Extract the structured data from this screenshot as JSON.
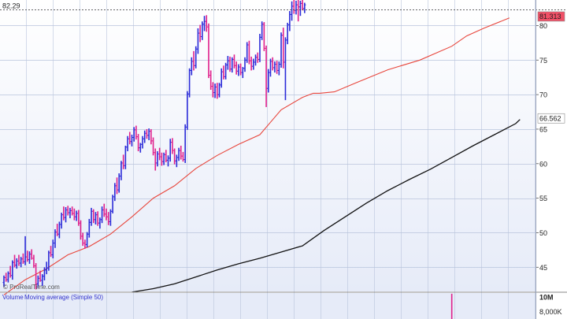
{
  "chart_data": [
    {
      "type": "ohlc",
      "watermark": "© ProRealTime.com",
      "colors": {
        "up": "#2b2bd8",
        "down": "#e0208c",
        "ma_short": "#e8463c",
        "ma_long": "#111111",
        "grid": "#b9c4dc",
        "background_top": "#ffffff",
        "background_bottom": "#e6ebf8",
        "price_box": "#f05066",
        "reference_line": "#333333"
      },
      "yaxis": {
        "ticks": [
          45,
          50,
          55,
          60,
          65,
          70,
          75,
          80
        ],
        "ylim": [
          41.5,
          83.7
        ],
        "grid": true
      },
      "reference_line": {
        "value": 82.29,
        "label": "82.29"
      },
      "price_labels": [
        {
          "label": "81.313",
          "value": 81.313,
          "color": "#f05066",
          "text_color": "#ffffff"
        },
        {
          "label": "66.562",
          "value": 66.562,
          "color": "#ffffff",
          "text_color": "#222222"
        }
      ],
      "bars": [
        [
          42.8,
          43.8,
          42.2,
          43.5
        ],
        [
          43.5,
          44.2,
          42.9,
          43.2
        ],
        [
          43.2,
          44.4,
          42.8,
          44.1
        ],
        [
          44.1,
          45.2,
          43.5,
          43.8
        ],
        [
          43.8,
          46.0,
          43.2,
          45.7
        ],
        [
          45.7,
          46.8,
          45.0,
          45.3
        ],
        [
          45.3,
          46.3,
          44.8,
          45.9
        ],
        [
          45.9,
          46.8,
          45.2,
          45.6
        ],
        [
          45.6,
          46.5,
          45.0,
          46.2
        ],
        [
          46.2,
          47.0,
          45.5,
          45.8
        ],
        [
          45.8,
          49.5,
          45.3,
          46.5
        ],
        [
          46.5,
          47.4,
          45.8,
          46.1
        ],
        [
          46.1,
          47.3,
          45.5,
          46.9
        ],
        [
          46.9,
          47.6,
          46.1,
          46.3
        ],
        [
          46.3,
          46.8,
          44.9,
          45.2
        ],
        [
          45.2,
          45.6,
          41.8,
          42.6
        ],
        [
          42.6,
          43.8,
          42.0,
          43.4
        ],
        [
          43.4,
          44.5,
          42.9,
          43.1
        ],
        [
          43.1,
          44.0,
          42.3,
          43.7
        ],
        [
          43.7,
          45.0,
          43.1,
          44.6
        ],
        [
          44.6,
          45.8,
          44.0,
          44.9
        ],
        [
          44.9,
          47.4,
          44.5,
          47.1
        ],
        [
          47.1,
          48.1,
          46.5,
          46.8
        ],
        [
          46.8,
          49.0,
          46.3,
          48.5
        ],
        [
          48.5,
          50.5,
          47.8,
          50.1
        ],
        [
          50.1,
          51.3,
          49.5,
          49.8
        ],
        [
          49.8,
          51.6,
          49.2,
          51.2
        ],
        [
          51.2,
          52.9,
          50.6,
          52.6
        ],
        [
          52.6,
          53.8,
          51.8,
          52.2
        ],
        [
          52.2,
          53.7,
          51.5,
          53.3
        ],
        [
          53.3,
          53.9,
          52.5,
          52.9
        ],
        [
          52.9,
          53.6,
          52.1,
          53.2
        ],
        [
          53.2,
          53.8,
          52.5,
          52.8
        ],
        [
          52.8,
          53.5,
          51.8,
          52.3
        ],
        [
          52.3,
          53.2,
          51.7,
          52.8
        ],
        [
          52.8,
          53.3,
          51.0,
          51.4
        ],
        [
          51.4,
          51.8,
          49.0,
          49.5
        ],
        [
          49.5,
          50.0,
          48.1,
          48.5
        ],
        [
          48.5,
          49.0,
          47.7,
          48.3
        ],
        [
          48.3,
          50.1,
          47.9,
          49.8
        ],
        [
          49.8,
          52.0,
          49.3,
          51.5
        ],
        [
          51.5,
          53.6,
          51.0,
          53.1
        ],
        [
          53.1,
          53.4,
          51.4,
          51.9
        ],
        [
          51.9,
          53.0,
          51.2,
          52.6
        ],
        [
          52.6,
          53.1,
          51.0,
          51.4
        ],
        [
          51.4,
          52.2,
          50.6,
          51.9
        ],
        [
          51.9,
          53.8,
          51.4,
          53.3
        ],
        [
          53.3,
          54.2,
          52.3,
          52.7
        ],
        [
          52.7,
          53.5,
          51.8,
          52.3
        ],
        [
          52.3,
          53.0,
          51.1,
          51.6
        ],
        [
          51.6,
          53.4,
          51.0,
          53.1
        ],
        [
          53.1,
          55.5,
          52.8,
          55.2
        ],
        [
          55.2,
          57.2,
          54.6,
          56.8
        ],
        [
          56.8,
          58.0,
          55.6,
          56.2
        ],
        [
          56.2,
          58.6,
          55.8,
          58.2
        ],
        [
          58.2,
          60.4,
          57.6,
          60.1
        ],
        [
          60.1,
          61.3,
          59.2,
          59.7
        ],
        [
          59.7,
          62.6,
          59.2,
          62.4
        ],
        [
          62.4,
          64.0,
          61.8,
          63.6
        ],
        [
          63.6,
          64.6,
          62.8,
          63.2
        ],
        [
          63.2,
          64.2,
          62.5,
          63.8
        ],
        [
          63.8,
          65.3,
          63.2,
          64.9
        ],
        [
          64.9,
          65.5,
          63.5,
          63.9
        ],
        [
          63.9,
          64.3,
          61.8,
          62.3
        ],
        [
          62.3,
          63.0,
          61.6,
          62.8
        ],
        [
          62.8,
          64.0,
          62.2,
          63.6
        ],
        [
          63.6,
          64.8,
          63.0,
          64.4
        ],
        [
          64.4,
          65.0,
          63.6,
          64.1
        ],
        [
          64.1,
          65.1,
          63.4,
          64.7
        ],
        [
          64.7,
          65.0,
          62.8,
          63.3
        ],
        [
          63.3,
          63.8,
          61.2,
          61.6
        ],
        [
          61.6,
          62.2,
          59.0,
          60.1
        ],
        [
          60.1,
          61.8,
          59.6,
          61.4
        ],
        [
          61.4,
          62.3,
          60.5,
          61.0
        ],
        [
          61.0,
          61.6,
          59.7,
          60.3
        ],
        [
          60.3,
          61.6,
          59.8,
          61.3
        ],
        [
          61.3,
          62.0,
          60.2,
          60.5
        ],
        [
          60.5,
          61.2,
          59.6,
          60.8
        ],
        [
          60.8,
          63.6,
          60.3,
          63.1
        ],
        [
          63.1,
          63.7,
          61.4,
          61.9
        ],
        [
          61.9,
          62.2,
          59.9,
          60.4
        ],
        [
          60.4,
          61.3,
          59.5,
          60.9
        ],
        [
          60.9,
          62.3,
          60.4,
          61.9
        ],
        [
          61.9,
          62.6,
          60.6,
          61.1
        ],
        [
          61.1,
          61.7,
          60.3,
          60.6
        ],
        [
          60.6,
          65.7,
          60.1,
          65.3
        ],
        [
          65.3,
          70.5,
          64.9,
          70.1
        ],
        [
          70.1,
          73.8,
          69.6,
          73.5
        ],
        [
          73.5,
          75.4,
          72.8,
          74.8
        ],
        [
          74.8,
          76.3,
          73.5,
          74.2
        ],
        [
          74.2,
          77.0,
          73.8,
          76.6
        ],
        [
          76.6,
          79.6,
          75.9,
          78.9
        ],
        [
          78.9,
          80.1,
          77.6,
          78.4
        ],
        [
          78.4,
          80.6,
          77.9,
          80.2
        ],
        [
          80.2,
          81.4,
          79.2,
          80.6
        ],
        [
          80.6,
          81.5,
          79.1,
          79.8
        ],
        [
          79.8,
          80.3,
          72.4,
          72.8
        ],
        [
          72.8,
          73.5,
          70.7,
          71.2
        ],
        [
          71.2,
          71.8,
          69.6,
          70.3
        ],
        [
          70.3,
          71.6,
          69.5,
          71.1
        ],
        [
          71.1,
          71.7,
          69.4,
          70.0
        ],
        [
          70.0,
          71.7,
          69.6,
          71.4
        ],
        [
          71.4,
          73.8,
          71.0,
          73.3
        ],
        [
          73.3,
          74.2,
          72.2,
          72.6
        ],
        [
          72.6,
          74.6,
          72.2,
          74.3
        ],
        [
          74.3,
          75.6,
          73.6,
          74.9
        ],
        [
          74.9,
          75.5,
          73.3,
          73.7
        ],
        [
          73.7,
          75.4,
          73.2,
          75.1
        ],
        [
          75.1,
          75.8,
          73.8,
          74.2
        ],
        [
          74.2,
          74.8,
          72.9,
          73.4
        ],
        [
          73.4,
          74.4,
          72.7,
          74.0
        ],
        [
          74.0,
          74.5,
          72.8,
          73.2
        ],
        [
          73.2,
          74.0,
          72.4,
          73.8
        ],
        [
          73.8,
          75.4,
          73.3,
          75.0
        ],
        [
          75.0,
          77.6,
          74.6,
          77.2
        ],
        [
          77.2,
          77.8,
          74.4,
          74.9
        ],
        [
          74.9,
          75.5,
          73.5,
          74.1
        ],
        [
          74.1,
          75.2,
          73.6,
          74.7
        ],
        [
          74.7,
          75.8,
          74.2,
          75.4
        ],
        [
          75.4,
          76.1,
          74.6,
          75.1
        ],
        [
          75.1,
          78.8,
          74.7,
          78.3
        ],
        [
          78.3,
          80.6,
          77.9,
          80.2
        ],
        [
          80.2,
          80.5,
          76.3,
          76.7
        ],
        [
          76.7,
          77.1,
          68.2,
          70.9
        ],
        [
          70.9,
          73.7,
          70.3,
          73.2
        ],
        [
          73.2,
          75.2,
          72.6,
          74.8
        ],
        [
          74.8,
          75.4,
          73.5,
          73.9
        ],
        [
          73.9,
          74.8,
          73.2,
          74.4
        ],
        [
          74.4,
          74.9,
          73.0,
          73.5
        ],
        [
          73.5,
          74.8,
          72.8,
          74.4
        ],
        [
          74.4,
          79.0,
          73.9,
          78.6
        ],
        [
          78.6,
          79.7,
          73.8,
          74.7
        ],
        [
          74.7,
          78.3,
          69.2,
          77.9
        ],
        [
          77.9,
          80.4,
          77.3,
          80.1
        ],
        [
          80.1,
          82.1,
          79.2,
          81.6
        ],
        [
          81.6,
          83.5,
          80.7,
          82.8
        ],
        [
          82.8,
          84.0,
          81.7,
          82.2
        ],
        [
          82.2,
          83.6,
          81.6,
          83.0
        ],
        [
          83.0,
          84.0,
          80.6,
          82.7
        ],
        [
          82.7,
          83.6,
          81.4,
          83.2
        ],
        [
          83.2,
          83.8,
          82.2,
          82.5
        ],
        [
          82.5,
          83.3,
          81.8,
          83.0
        ]
      ],
      "ma_short": [
        [
          0,
          41.0
        ],
        [
          10,
          43.2
        ],
        [
          20,
          44.8
        ],
        [
          30,
          46.8
        ],
        [
          40,
          48.0
        ],
        [
          50,
          49.8
        ],
        [
          60,
          52.3
        ],
        [
          70,
          55.0
        ],
        [
          80,
          56.8
        ],
        [
          90,
          59.3
        ],
        [
          100,
          61.2
        ],
        [
          110,
          62.8
        ],
        [
          120,
          64.2
        ],
        [
          125,
          66.0
        ],
        [
          130,
          67.8
        ],
        [
          140,
          69.6
        ],
        [
          145,
          70.2
        ],
        [
          148,
          70.2
        ],
        [
          155,
          70.4
        ],
        [
          165,
          71.7
        ],
        [
          180,
          73.6
        ],
        [
          195,
          75.0
        ],
        [
          210,
          77.0
        ],
        [
          217,
          78.5
        ],
        [
          225,
          79.6
        ],
        [
          237,
          81.1
        ]
      ],
      "ma_long": [
        [
          60,
          41.4
        ],
        [
          70,
          41.9
        ],
        [
          80,
          42.6
        ],
        [
          90,
          43.6
        ],
        [
          100,
          44.6
        ],
        [
          110,
          45.5
        ],
        [
          120,
          46.3
        ],
        [
          130,
          47.2
        ],
        [
          140,
          48.1
        ],
        [
          150,
          50.3
        ],
        [
          160,
          52.3
        ],
        [
          170,
          54.3
        ],
        [
          180,
          56.1
        ],
        [
          190,
          57.7
        ],
        [
          200,
          59.2
        ],
        [
          210,
          60.9
        ],
        [
          220,
          62.6
        ],
        [
          230,
          64.2
        ],
        [
          240,
          65.8
        ],
        [
          242,
          66.4
        ]
      ],
      "plot_bar_count": 250
    },
    {
      "type": "bar",
      "title": "Volume",
      "subtitle": "Moving average (Simple 50)",
      "yaxis": {
        "ticks": [
          {
            "label": "10M",
            "bold": true,
            "value": 10000000
          },
          {
            "label": "8,000K",
            "bold": false,
            "value": 8000000
          }
        ],
        "ylim": [
          7000000,
          10600000
        ]
      },
      "values": [
        {
          "bar_index": 210,
          "value": 10500000,
          "color": "#e0208c"
        }
      ]
    }
  ]
}
